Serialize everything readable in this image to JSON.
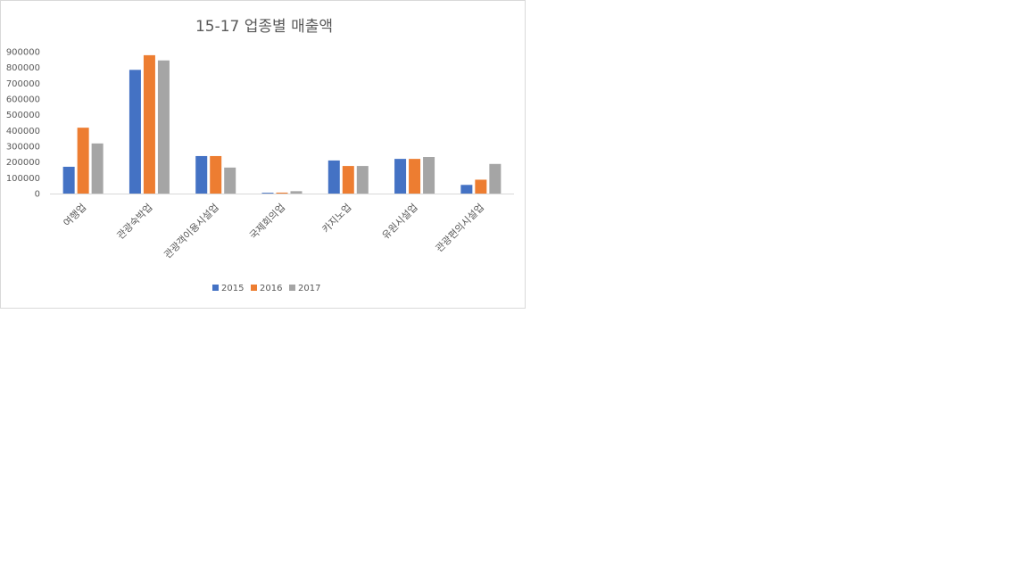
{
  "chart_data": {
    "type": "bar",
    "title": "15-17 업종별 매출액",
    "xlabel": "",
    "ylabel": "",
    "categories": [
      "여행업",
      "관광숙박업",
      "관광객이용시설업",
      "국제회의업",
      "카지노업",
      "유원시설업",
      "관광편의시설업"
    ],
    "series": [
      {
        "name": "2015",
        "color": "#4472c4",
        "values": [
          170000,
          785000,
          238000,
          5000,
          210000,
          220000,
          55000
        ]
      },
      {
        "name": "2016",
        "color": "#ed7d31",
        "values": [
          418000,
          878000,
          238000,
          6000,
          175000,
          220000,
          88000
        ]
      },
      {
        "name": "2017",
        "color": "#a5a5a5",
        "values": [
          318000,
          845000,
          165000,
          15000,
          175000,
          232000,
          188000
        ]
      }
    ],
    "ylim": [
      0,
      900000
    ],
    "yticks": [
      "0",
      "100000",
      "200000",
      "300000",
      "400000",
      "500000",
      "600000",
      "700000",
      "800000",
      "900000"
    ],
    "grid": false,
    "legend": "bottom"
  }
}
